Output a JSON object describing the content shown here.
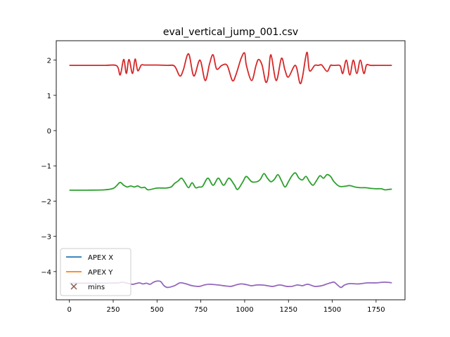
{
  "chart_data": {
    "type": "line",
    "title": "eval_vertical_jump_001.csv",
    "xlabel": "",
    "ylabel": "",
    "xlim": [
      -75,
      1915
    ],
    "ylim": [
      -4.8,
      2.55
    ],
    "xticks": [
      0,
      250,
      500,
      750,
      1000,
      1250,
      1500,
      1750
    ],
    "yticks": [
      -4,
      -3,
      -2,
      -1,
      0,
      1,
      2
    ],
    "xtick_labels": [
      "0",
      "250",
      "500",
      "750",
      "1000",
      "1250",
      "1500",
      "1750"
    ],
    "ytick_labels": [
      "−4",
      "−3",
      "−2",
      "−1",
      "0",
      "1",
      "2"
    ],
    "grid": false,
    "legend_position": "lower-left",
    "legend": [
      {
        "label": "APEX X",
        "color": "#1f77b4",
        "marker": "line"
      },
      {
        "label": "APEX Y",
        "color": "#ff7f0e",
        "marker": "line"
      },
      {
        "label": "mins",
        "color": "#8c564b",
        "marker": "x"
      }
    ],
    "series": [
      {
        "color": "#d62728",
        "x": [
          0,
          100,
          200,
          270,
          290,
          310,
          325,
          340,
          360,
          375,
          390,
          410,
          425,
          440,
          500,
          560,
          600,
          630,
          650,
          680,
          710,
          745,
          775,
          800,
          820,
          840,
          870,
          900,
          930,
          950,
          980,
          1000,
          1010,
          1040,
          1065,
          1080,
          1100,
          1120,
          1135,
          1150,
          1180,
          1210,
          1230,
          1250,
          1290,
          1315,
          1330,
          1355,
          1370,
          1400,
          1420,
          1440,
          1470,
          1490,
          1500,
          1520,
          1545,
          1560,
          1580,
          1600,
          1620,
          1640,
          1660,
          1680,
          1695,
          1710,
          1720,
          1750,
          1800,
          1840
        ],
        "y": [
          1.85,
          1.85,
          1.85,
          1.84,
          1.58,
          2.02,
          1.62,
          2.02,
          1.62,
          2.03,
          1.7,
          1.86,
          1.86,
          1.86,
          1.86,
          1.85,
          1.83,
          1.55,
          1.72,
          2.18,
          1.55,
          2.0,
          1.42,
          1.9,
          2.15,
          1.75,
          1.85,
          1.85,
          1.42,
          1.58,
          2.05,
          2.2,
          1.85,
          1.42,
          1.85,
          2.02,
          1.85,
          1.38,
          1.55,
          2.15,
          1.42,
          2.05,
          1.72,
          1.52,
          1.85,
          1.35,
          1.52,
          2.22,
          1.7,
          1.85,
          1.85,
          1.86,
          1.68,
          1.85,
          1.85,
          1.85,
          1.84,
          1.62,
          2.0,
          1.58,
          2.0,
          1.62,
          2.0,
          1.62,
          1.86,
          1.86,
          1.85,
          1.85,
          1.85,
          1.85
        ]
      },
      {
        "color": "#2ca02c",
        "x": [
          0,
          100,
          200,
          250,
          270,
          290,
          310,
          330,
          350,
          370,
          390,
          410,
          430,
          450,
          500,
          550,
          580,
          600,
          620,
          640,
          660,
          680,
          700,
          720,
          740,
          760,
          790,
          820,
          850,
          880,
          910,
          940,
          960,
          990,
          1010,
          1040,
          1070,
          1090,
          1110,
          1130,
          1150,
          1170,
          1190,
          1210,
          1230,
          1250,
          1270,
          1290,
          1310,
          1330,
          1350,
          1370,
          1390,
          1410,
          1430,
          1450,
          1470,
          1490,
          1510,
          1540,
          1570,
          1600,
          1630,
          1660,
          1690,
          1720,
          1750,
          1780,
          1800,
          1820,
          1840
        ],
        "y": [
          -1.69,
          -1.69,
          -1.68,
          -1.64,
          -1.56,
          -1.47,
          -1.55,
          -1.6,
          -1.57,
          -1.6,
          -1.57,
          -1.62,
          -1.61,
          -1.68,
          -1.63,
          -1.63,
          -1.6,
          -1.5,
          -1.43,
          -1.35,
          -1.48,
          -1.62,
          -1.48,
          -1.62,
          -1.6,
          -1.58,
          -1.35,
          -1.55,
          -1.35,
          -1.55,
          -1.35,
          -1.53,
          -1.67,
          -1.45,
          -1.3,
          -1.45,
          -1.45,
          -1.38,
          -1.22,
          -1.35,
          -1.45,
          -1.38,
          -1.25,
          -1.42,
          -1.6,
          -1.45,
          -1.28,
          -1.2,
          -1.35,
          -1.4,
          -1.3,
          -1.45,
          -1.55,
          -1.42,
          -1.28,
          -1.35,
          -1.25,
          -1.3,
          -1.45,
          -1.58,
          -1.58,
          -1.56,
          -1.6,
          -1.62,
          -1.62,
          -1.64,
          -1.65,
          -1.65,
          -1.68,
          -1.67,
          -1.66
        ]
      },
      {
        "color": "#9467bd",
        "x": [
          0,
          100,
          200,
          280,
          300,
          330,
          360,
          380,
          400,
          420,
          440,
          460,
          480,
          500,
          520,
          540,
          560,
          600,
          630,
          660,
          700,
          740,
          770,
          800,
          850,
          880,
          920,
          950,
          980,
          1010,
          1040,
          1070,
          1100,
          1130,
          1160,
          1200,
          1240,
          1270,
          1300,
          1330,
          1360,
          1400,
          1440,
          1470,
          1490,
          1510,
          1530,
          1550,
          1570,
          1600,
          1650,
          1700,
          1750,
          1800,
          1840
        ],
        "y": [
          -4.33,
          -4.33,
          -4.33,
          -4.32,
          -4.3,
          -4.33,
          -4.36,
          -4.34,
          -4.32,
          -4.35,
          -4.33,
          -4.36,
          -4.3,
          -4.27,
          -4.28,
          -4.4,
          -4.45,
          -4.4,
          -4.32,
          -4.34,
          -4.4,
          -4.42,
          -4.38,
          -4.36,
          -4.38,
          -4.4,
          -4.42,
          -4.38,
          -4.35,
          -4.37,
          -4.4,
          -4.38,
          -4.38,
          -4.4,
          -4.42,
          -4.38,
          -4.42,
          -4.42,
          -4.38,
          -4.4,
          -4.36,
          -4.42,
          -4.4,
          -4.35,
          -4.32,
          -4.3,
          -4.38,
          -4.45,
          -4.38,
          -4.34,
          -4.35,
          -4.32,
          -4.32,
          -4.3,
          -4.32
        ]
      }
    ],
    "mins": []
  }
}
